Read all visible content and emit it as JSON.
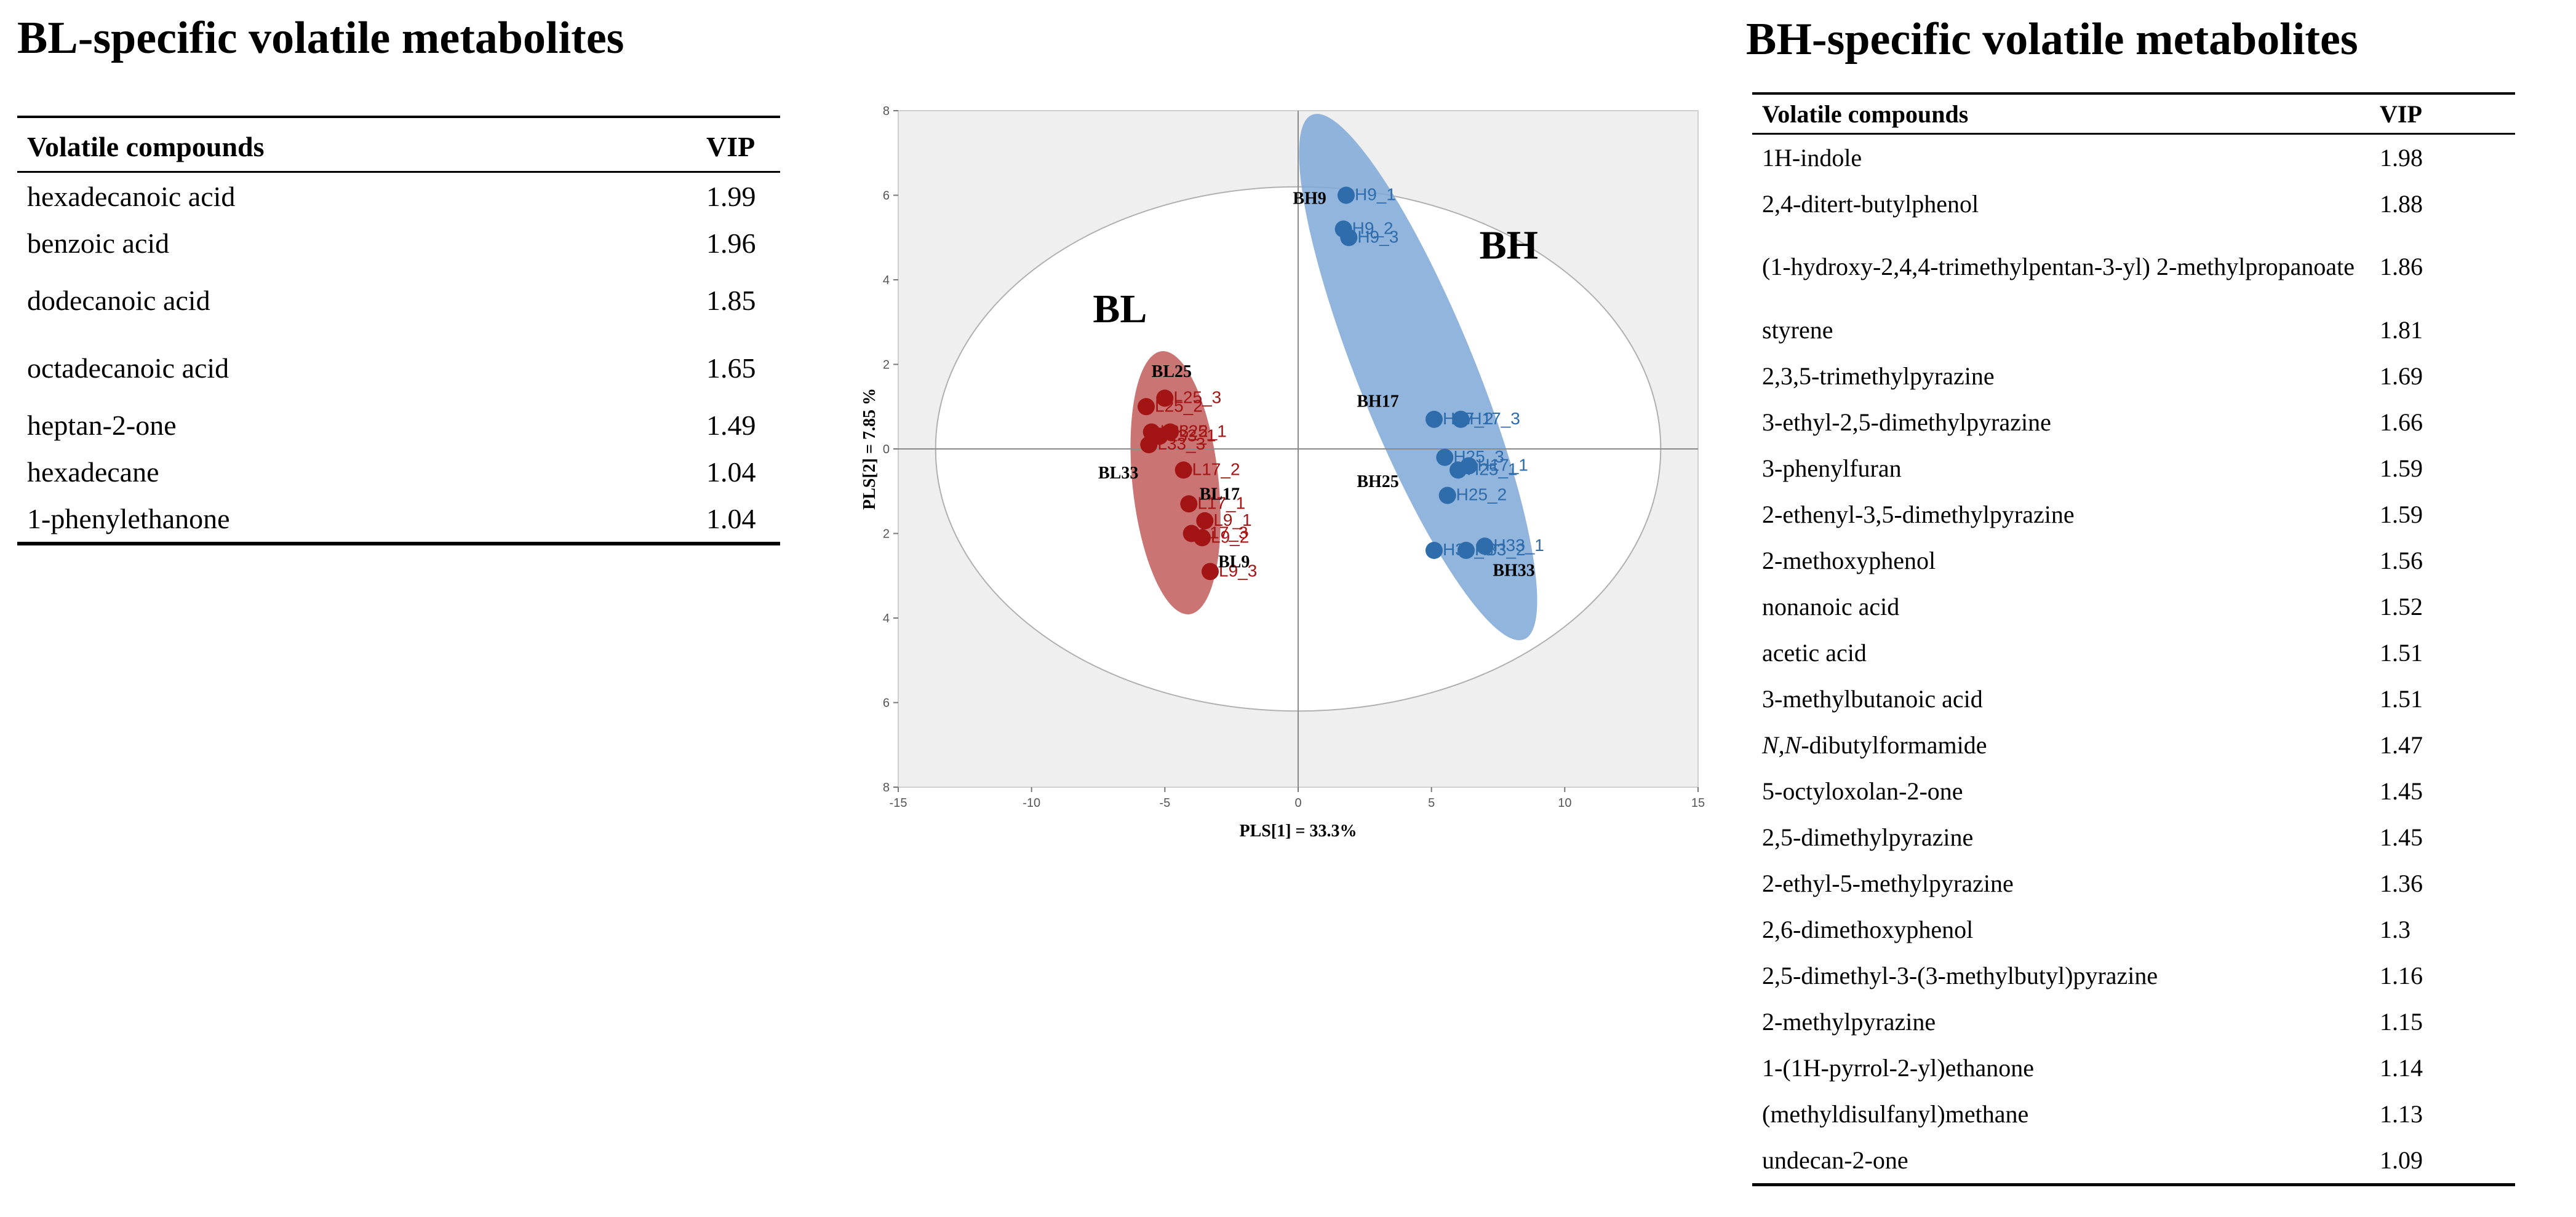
{
  "bl": {
    "heading": "BL-specific volatile metabolites",
    "col_compound": "Volatile compounds",
    "col_vip": "VIP",
    "rows": [
      {
        "name": "hexadecanoic acid",
        "vip": "1.99"
      },
      {
        "name": "benzoic acid",
        "vip": "1.96"
      },
      {
        "name": "dodecanoic acid",
        "vip": "1.85"
      },
      {
        "name": "octadecanoic acid",
        "vip": "1.65"
      },
      {
        "name": "heptan-2-one",
        "vip": "1.49"
      },
      {
        "name": "hexadecane",
        "vip": "1.04"
      },
      {
        "name": "1-phenylethanone",
        "vip": "1.04"
      }
    ]
  },
  "bh": {
    "heading": "BH-specific volatile metabolites",
    "col_compound": "Volatile compounds",
    "col_vip": "VIP",
    "rows": [
      {
        "name": "1H-indole",
        "vip": "1.98"
      },
      {
        "name": "2,4-ditert-butylphenol",
        "vip": "1.88"
      },
      {
        "name": "(1-hydroxy-2,4,4-trimethylpentan-3-yl) 2-methylpropanoate",
        "vip": "1.86"
      },
      {
        "name": "styrene",
        "vip": "1.81"
      },
      {
        "name": "2,3,5-trimethylpyrazine",
        "vip": "1.69"
      },
      {
        "name": "3-ethyl-2,5-dimethylpyrazine",
        "vip": "1.66"
      },
      {
        "name": "3-phenylfuran",
        "vip": "1.59"
      },
      {
        "name": "2-ethenyl-3,5-dimethylpyrazine",
        "vip": "1.59"
      },
      {
        "name": "2-methoxyphenol",
        "vip": "1.56"
      },
      {
        "name": "nonanoic acid",
        "vip": "1.52"
      },
      {
        "name": "acetic acid",
        "vip": "1.51"
      },
      {
        "name": "3-methylbutanoic acid",
        "vip": "1.51"
      },
      {
        "name": "-dibutylformamide",
        "name_italic_prefix": "N,N",
        "vip": "1.47"
      },
      {
        "name": "5-octyloxolan-2-one",
        "vip": "1.45"
      },
      {
        "name": "2,5-dimethylpyrazine",
        "vip": "1.45"
      },
      {
        "name": "2-ethyl-5-methylpyrazine",
        "vip": "1.36"
      },
      {
        "name": "2,6-dimethoxyphenol",
        "vip": "1.3"
      },
      {
        "name": "2,5-dimethyl-3-(3-methylbutyl)pyrazine",
        "vip": "1.16"
      },
      {
        "name": "2-methylpyrazine",
        "vip": "1.15"
      },
      {
        "name": "1-(1H-pyrrol-2-yl)ethanone",
        "vip": "1.14"
      },
      {
        "name": "(methyldisulfanyl)methane",
        "vip": "1.13"
      },
      {
        "name": "undecan-2-one",
        "vip": "1.09"
      }
    ]
  },
  "chart_data": {
    "type": "scatter",
    "title": "",
    "xlabel": "PLS[1] = 33.3%",
    "ylabel": "PLS[2] = 7.85 %",
    "xlim": [
      -15,
      15
    ],
    "ylim": [
      -8,
      8
    ],
    "xticks": [
      "-15",
      "-10",
      "-5",
      "0",
      "5",
      "10",
      "15"
    ],
    "yticks": [
      "8",
      "6",
      "4",
      "2",
      "0",
      "2",
      "4",
      "6",
      "8"
    ],
    "group_labels": {
      "BL": "BL",
      "BH": "BH"
    },
    "series": [
      {
        "name": "BL",
        "color": "#a31515",
        "ellipse_color": "#c96b6b",
        "points": [
          {
            "label": "L25_2",
            "x": -5.7,
            "y": 1.0
          },
          {
            "label": "L25_3",
            "x": -5.0,
            "y": 1.2
          },
          {
            "label": "L33_2",
            "x": -5.5,
            "y": 0.4
          },
          {
            "label": "L33_3",
            "x": -5.6,
            "y": 0.1
          },
          {
            "label": "L25_1",
            "x": -4.8,
            "y": 0.4
          },
          {
            "label": "L33_1",
            "x": -5.2,
            "y": 0.3
          },
          {
            "label": "L17_2",
            "x": -4.3,
            "y": -0.5
          },
          {
            "label": "L17_1",
            "x": -4.1,
            "y": -1.3
          },
          {
            "label": "L9_1",
            "x": -3.5,
            "y": -1.7
          },
          {
            "label": "L9_2",
            "x": -3.6,
            "y": -2.1
          },
          {
            "label": "L17_3",
            "x": -4.0,
            "y": -2.0
          },
          {
            "label": "L9_3",
            "x": -3.3,
            "y": -2.9
          }
        ],
        "sample_groups": [
          {
            "label": "BL25",
            "x": -5.5,
            "y": 1.7
          },
          {
            "label": "BL33",
            "x": -7.5,
            "y": -0.7
          },
          {
            "label": "BL17",
            "x": -3.7,
            "y": -1.2
          },
          {
            "label": "BL9",
            "x": -3.0,
            "y": -2.8
          }
        ]
      },
      {
        "name": "BH",
        "color": "#2e6cab",
        "ellipse_color": "#7aa9d8",
        "points": [
          {
            "label": "H9_1",
            "x": 1.8,
            "y": 6.0
          },
          {
            "label": "H9_2",
            "x": 1.7,
            "y": 5.2
          },
          {
            "label": "H9_3",
            "x": 1.9,
            "y": 5.0
          },
          {
            "label": "H17_3",
            "x": 6.1,
            "y": 0.7
          },
          {
            "label": "H17_2",
            "x": 5.1,
            "y": 0.7
          },
          {
            "label": "H25_3",
            "x": 5.5,
            "y": -0.2
          },
          {
            "label": "H17_1",
            "x": 6.4,
            "y": -0.4
          },
          {
            "label": "H25_1",
            "x": 6.0,
            "y": -0.5
          },
          {
            "label": "H25_2",
            "x": 5.6,
            "y": -1.1
          },
          {
            "label": "H33_3",
            "x": 5.1,
            "y": -2.4
          },
          {
            "label": "H33_1",
            "x": 7.0,
            "y": -2.3
          },
          {
            "label": "H33_2",
            "x": 6.3,
            "y": -2.4
          }
        ],
        "sample_groups": [
          {
            "label": "BH9",
            "x": -0.2,
            "y": 5.8
          },
          {
            "label": "BH17",
            "x": 2.2,
            "y": 1.0
          },
          {
            "label": "BH25",
            "x": 2.2,
            "y": -0.9
          },
          {
            "label": "BH33",
            "x": 7.3,
            "y": -3.0
          }
        ]
      }
    ]
  }
}
